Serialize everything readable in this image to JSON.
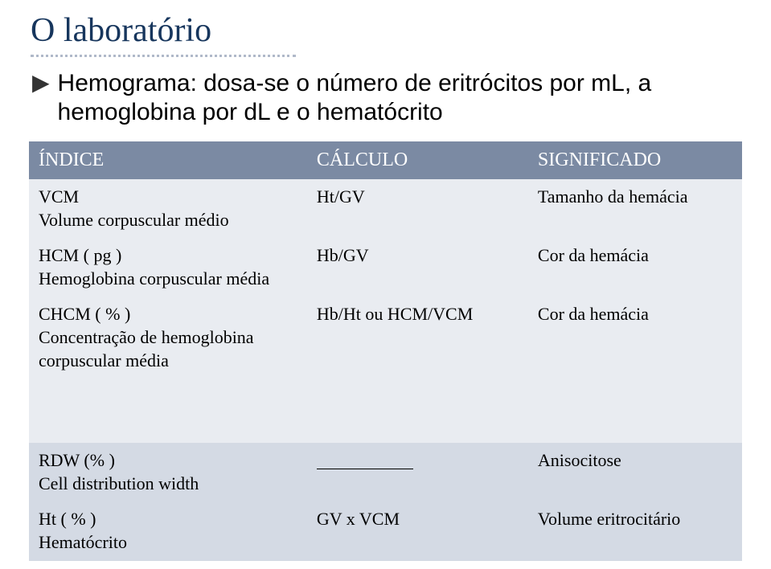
{
  "slide": {
    "title": "O laboratório",
    "bullet": "Hemograma: dosa-se o número de eritrócitos por mL, a hemoglobina por dL e o hematócrito"
  },
  "table": {
    "header_bg": "#7b8aa3",
    "band_a_bg": "#e9ecf1",
    "band_b_bg": "#d4dae4",
    "text_color": "#000000",
    "header_text_color": "#ffffff",
    "columns": [
      "ÍNDICE",
      "CÁLCULO",
      "SIGNIFICADO"
    ],
    "rows": [
      {
        "band": "a",
        "c0": "VCM\nVolume corpuscular médio",
        "c1": "Ht/GV",
        "c2": "Tamanho da hemácia"
      },
      {
        "band": "a",
        "c0": "HCM ( pg )\nHemoglobina corpuscular média",
        "c1": "Hb/GV",
        "c2": "Cor da hemácia"
      },
      {
        "band": "a",
        "tall": true,
        "c0": "CHCM ( % )\nConcentração de hemoglobina corpuscular média",
        "c1": "Hb/Ht   ou HCM/VCM",
        "c2": "Cor da hemácia"
      },
      {
        "band": "a",
        "spacer": true,
        "c0": "",
        "c1": "",
        "c2": ""
      },
      {
        "band": "b",
        "c0": "RDW (% )\nCell distribution width",
        "c1": "_BLANK_",
        "c2": "Anisocitose"
      },
      {
        "band": "b",
        "c0": "Ht ( % )\nHematócrito",
        "c1": "GV  x  VCM",
        "c2": "Volume eritrocitário"
      }
    ]
  }
}
